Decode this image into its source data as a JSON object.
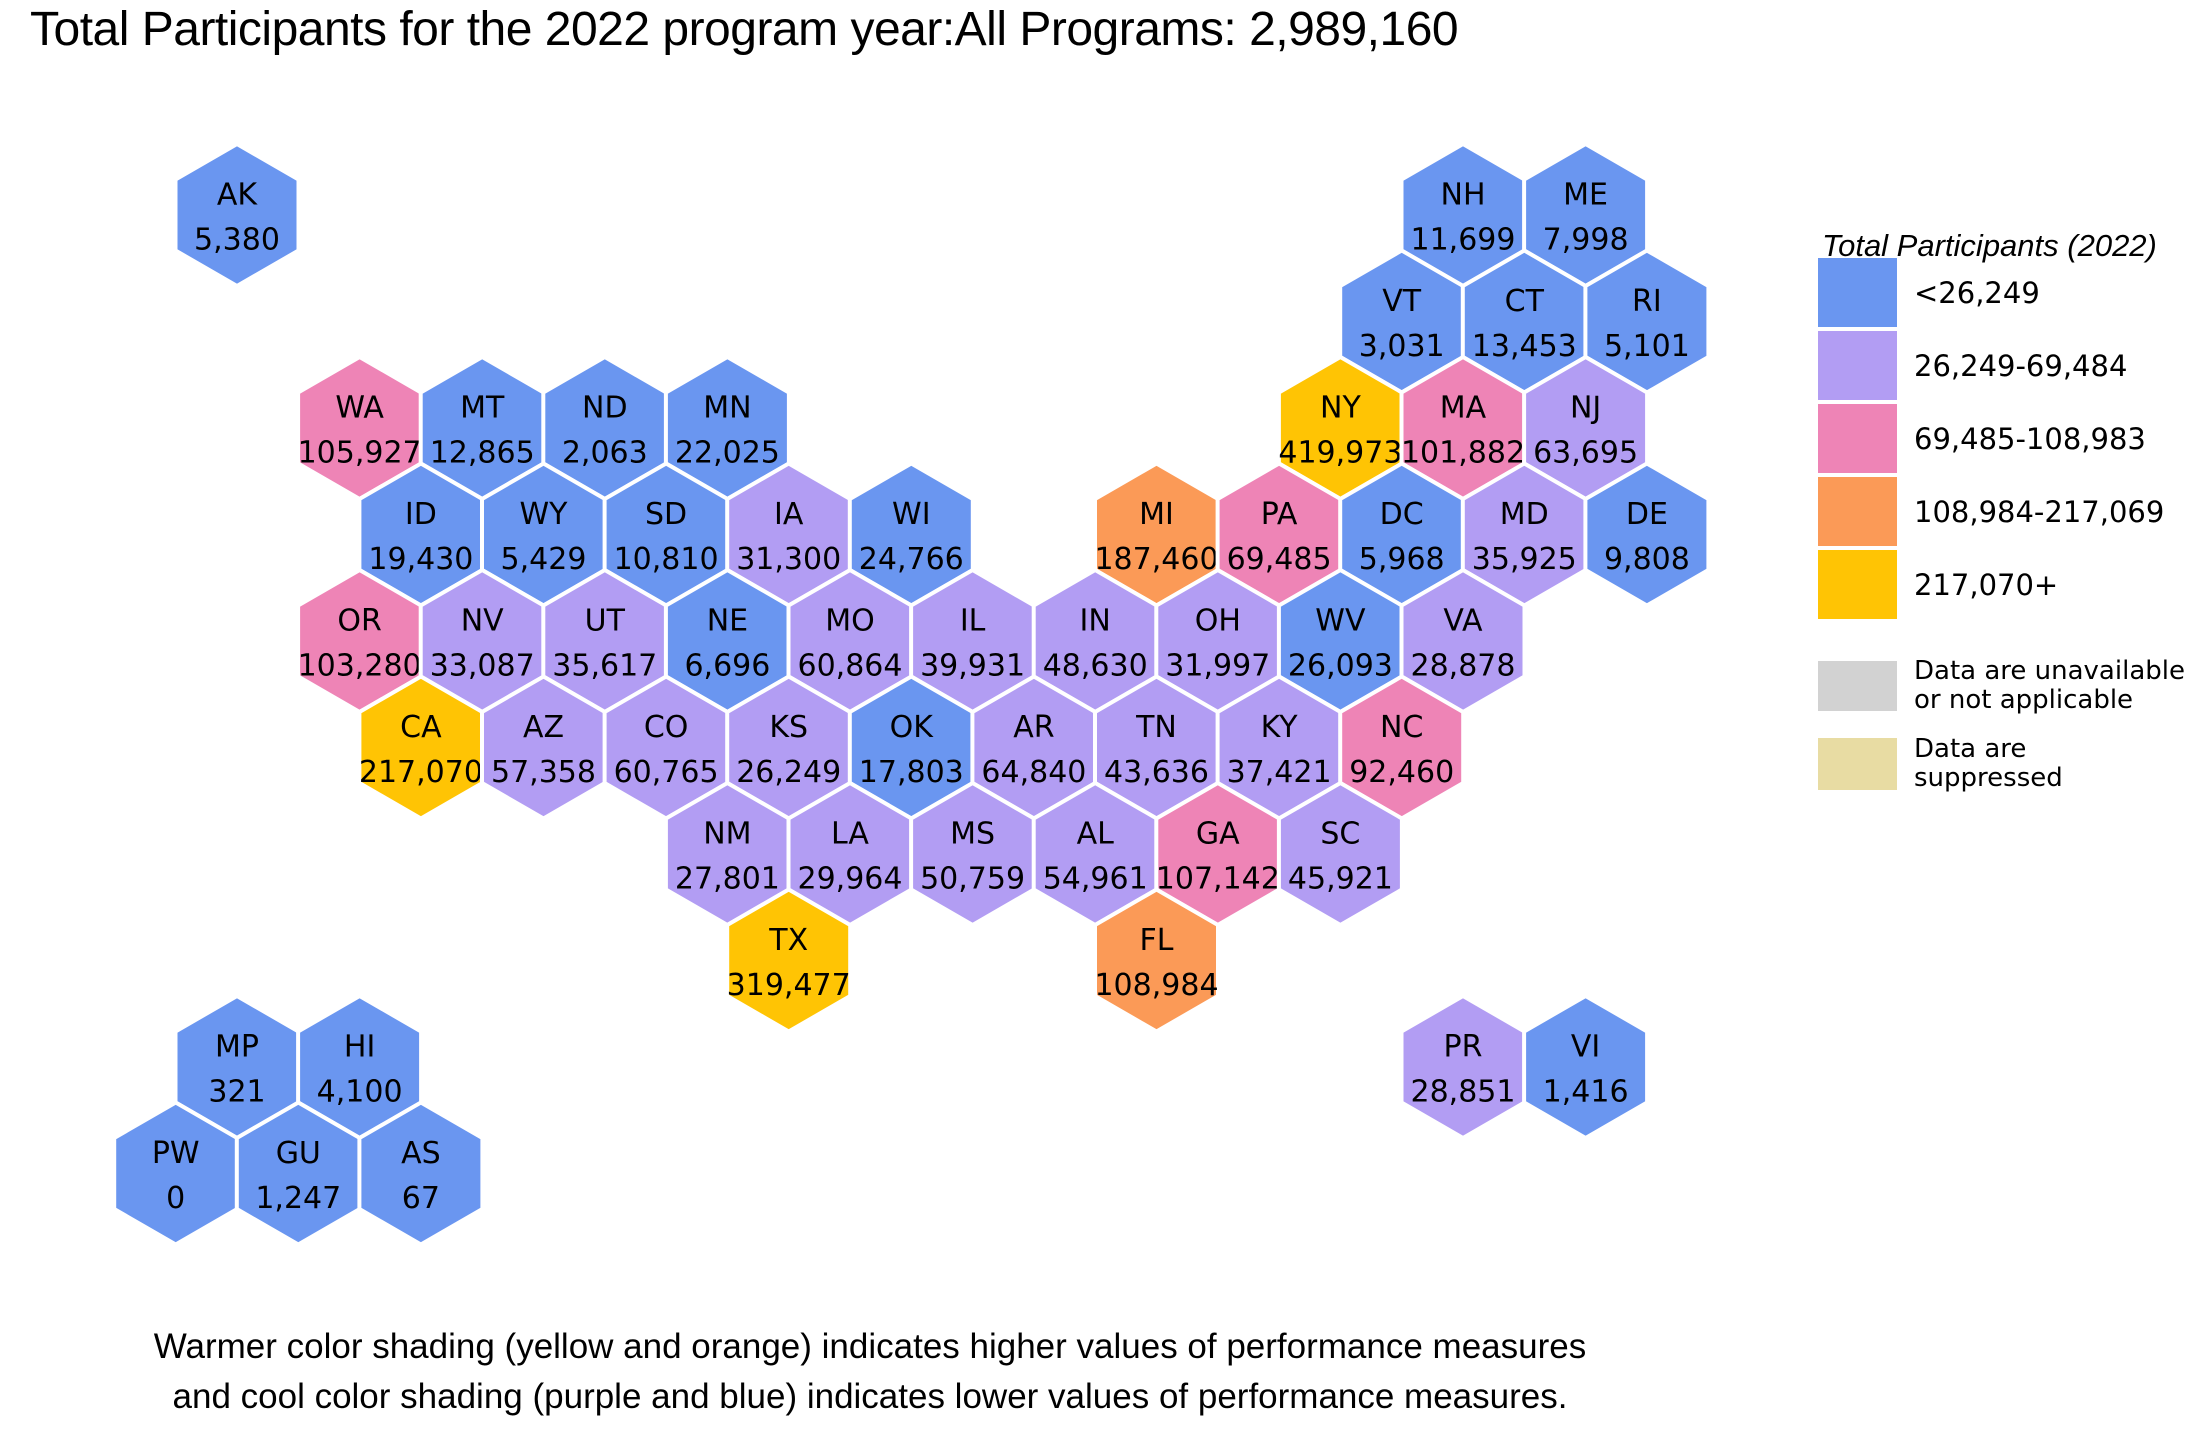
{
  "title": "Total Participants for the 2022 program year:All Programs: 2,989,160",
  "footer": {
    "line1": "Warmer color shading (yellow and orange) indicates higher values of performance measures",
    "line2": "and cool color shading (purple and blue) indicates lower values of performance measures."
  },
  "legend": {
    "title": "Total Participants (2022)",
    "classes": [
      {
        "label": "<26,249",
        "color": "#6A96F0"
      },
      {
        "label": "26,249-69,484",
        "color": "#B29DF3"
      },
      {
        "label": "69,485-108,983",
        "color": "#EE84B6"
      },
      {
        "label": "108,984-217,069",
        "color": "#FB9A57"
      },
      {
        "label": "217,070+",
        "color": "#FFC404"
      }
    ],
    "notes": [
      {
        "label": "Data are unavailable\nor not applicable",
        "color": "#D2D2D2"
      },
      {
        "label": "Data are\nsuppressed",
        "color": "#E8DCA3"
      }
    ]
  },
  "chart_data": {
    "type": "hexmap",
    "title": "Total Participants for the 2022 program year:All Programs: 2,989,160",
    "program_year": "2022",
    "total_all_programs": "2,989,160",
    "legend_title": "Total Participants (2022)",
    "bins": [
      "<26,249",
      "26,249-69,484",
      "69,485-108,983",
      "108,984-217,069",
      "217,070+"
    ],
    "states": [
      {
        "abbr": "AK",
        "value": "5,380",
        "bin": 0,
        "col": 0,
        "row": 0
      },
      {
        "abbr": "NH",
        "value": "11,699",
        "bin": 0,
        "col": 20,
        "row": 0
      },
      {
        "abbr": "ME",
        "value": "7,998",
        "bin": 0,
        "col": 22,
        "row": 0
      },
      {
        "abbr": "VT",
        "value": "3,031",
        "bin": 0,
        "col": 19,
        "row": 1
      },
      {
        "abbr": "CT",
        "value": "13,453",
        "bin": 0,
        "col": 21,
        "row": 1
      },
      {
        "abbr": "RI",
        "value": "5,101",
        "bin": 0,
        "col": 23,
        "row": 1
      },
      {
        "abbr": "WA",
        "value": "105,927",
        "bin": 2,
        "col": 2,
        "row": 2
      },
      {
        "abbr": "MT",
        "value": "12,865",
        "bin": 0,
        "col": 4,
        "row": 2
      },
      {
        "abbr": "ND",
        "value": "2,063",
        "bin": 0,
        "col": 6,
        "row": 2
      },
      {
        "abbr": "MN",
        "value": "22,025",
        "bin": 0,
        "col": 8,
        "row": 2
      },
      {
        "abbr": "NY",
        "value": "419,973",
        "bin": 4,
        "col": 18,
        "row": 2
      },
      {
        "abbr": "MA",
        "value": "101,882",
        "bin": 2,
        "col": 20,
        "row": 2
      },
      {
        "abbr": "NJ",
        "value": "63,695",
        "bin": 1,
        "col": 22,
        "row": 2
      },
      {
        "abbr": "ID",
        "value": "19,430",
        "bin": 0,
        "col": 3,
        "row": 3
      },
      {
        "abbr": "WY",
        "value": "5,429",
        "bin": 0,
        "col": 5,
        "row": 3
      },
      {
        "abbr": "SD",
        "value": "10,810",
        "bin": 0,
        "col": 7,
        "row": 3
      },
      {
        "abbr": "IA",
        "value": "31,300",
        "bin": 1,
        "col": 9,
        "row": 3
      },
      {
        "abbr": "WI",
        "value": "24,766",
        "bin": 0,
        "col": 11,
        "row": 3
      },
      {
        "abbr": "MI",
        "value": "187,460",
        "bin": 3,
        "col": 15,
        "row": 3
      },
      {
        "abbr": "PA",
        "value": "69,485",
        "bin": 2,
        "col": 17,
        "row": 3
      },
      {
        "abbr": "DC",
        "value": "5,968",
        "bin": 0,
        "col": 19,
        "row": 3
      },
      {
        "abbr": "MD",
        "value": "35,925",
        "bin": 1,
        "col": 21,
        "row": 3
      },
      {
        "abbr": "DE",
        "value": "9,808",
        "bin": 0,
        "col": 23,
        "row": 3
      },
      {
        "abbr": "OR",
        "value": "103,280",
        "bin": 2,
        "col": 2,
        "row": 4
      },
      {
        "abbr": "NV",
        "value": "33,087",
        "bin": 1,
        "col": 4,
        "row": 4
      },
      {
        "abbr": "UT",
        "value": "35,617",
        "bin": 1,
        "col": 6,
        "row": 4
      },
      {
        "abbr": "NE",
        "value": "6,696",
        "bin": 0,
        "col": 8,
        "row": 4
      },
      {
        "abbr": "MO",
        "value": "60,864",
        "bin": 1,
        "col": 10,
        "row": 4
      },
      {
        "abbr": "IL",
        "value": "39,931",
        "bin": 1,
        "col": 12,
        "row": 4
      },
      {
        "abbr": "IN",
        "value": "48,630",
        "bin": 1,
        "col": 14,
        "row": 4
      },
      {
        "abbr": "OH",
        "value": "31,997",
        "bin": 1,
        "col": 16,
        "row": 4
      },
      {
        "abbr": "WV",
        "value": "26,093",
        "bin": 0,
        "col": 18,
        "row": 4
      },
      {
        "abbr": "VA",
        "value": "28,878",
        "bin": 1,
        "col": 20,
        "row": 4
      },
      {
        "abbr": "CA",
        "value": "217,070",
        "bin": 4,
        "col": 3,
        "row": 5
      },
      {
        "abbr": "AZ",
        "value": "57,358",
        "bin": 1,
        "col": 5,
        "row": 5
      },
      {
        "abbr": "CO",
        "value": "60,765",
        "bin": 1,
        "col": 7,
        "row": 5
      },
      {
        "abbr": "KS",
        "value": "26,249",
        "bin": 1,
        "col": 9,
        "row": 5
      },
      {
        "abbr": "OK",
        "value": "17,803",
        "bin": 0,
        "col": 11,
        "row": 5
      },
      {
        "abbr": "AR",
        "value": "64,840",
        "bin": 1,
        "col": 13,
        "row": 5
      },
      {
        "abbr": "TN",
        "value": "43,636",
        "bin": 1,
        "col": 15,
        "row": 5
      },
      {
        "abbr": "KY",
        "value": "37,421",
        "bin": 1,
        "col": 17,
        "row": 5
      },
      {
        "abbr": "NC",
        "value": "92,460",
        "bin": 2,
        "col": 19,
        "row": 5
      },
      {
        "abbr": "NM",
        "value": "27,801",
        "bin": 1,
        "col": 8,
        "row": 6
      },
      {
        "abbr": "LA",
        "value": "29,964",
        "bin": 1,
        "col": 10,
        "row": 6
      },
      {
        "abbr": "MS",
        "value": "50,759",
        "bin": 1,
        "col": 12,
        "row": 6
      },
      {
        "abbr": "AL",
        "value": "54,961",
        "bin": 1,
        "col": 14,
        "row": 6
      },
      {
        "abbr": "GA",
        "value": "107,142",
        "bin": 2,
        "col": 16,
        "row": 6
      },
      {
        "abbr": "SC",
        "value": "45,921",
        "bin": 1,
        "col": 18,
        "row": 6
      },
      {
        "abbr": "TX",
        "value": "319,477",
        "bin": 4,
        "col": 9,
        "row": 7
      },
      {
        "abbr": "FL",
        "value": "108,984",
        "bin": 3,
        "col": 15,
        "row": 7
      },
      {
        "abbr": "MP",
        "value": "321",
        "bin": 0,
        "col": 0,
        "row": 8
      },
      {
        "abbr": "HI",
        "value": "4,100",
        "bin": 0,
        "col": 2,
        "row": 8
      },
      {
        "abbr": "PR",
        "value": "28,851",
        "bin": 1,
        "col": 20,
        "row": 8
      },
      {
        "abbr": "VI",
        "value": "1,416",
        "bin": 0,
        "col": 22,
        "row": 8
      },
      {
        "abbr": "PW",
        "value": "0",
        "bin": 0,
        "col": -1,
        "row": 9
      },
      {
        "abbr": "GU",
        "value": "1,247",
        "bin": 0,
        "col": 1,
        "row": 9
      },
      {
        "abbr": "AS",
        "value": "67",
        "bin": 0,
        "col": 3,
        "row": 9
      }
    ]
  }
}
